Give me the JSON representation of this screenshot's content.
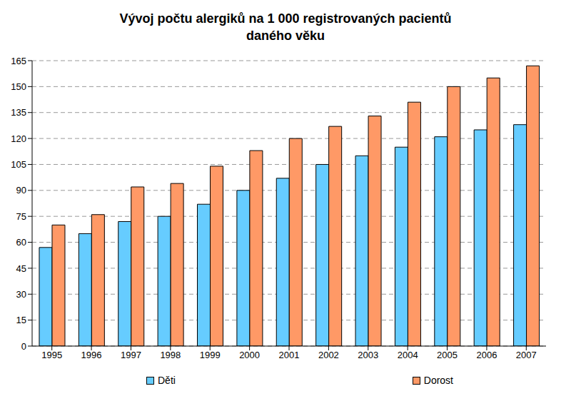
{
  "chart_data": {
    "type": "bar",
    "title": "Vývoj počtu alergiků na 1 000 registrovaných pacientů daného věku",
    "categories": [
      "1995",
      "1996",
      "1997",
      "1998",
      "1999",
      "2000",
      "2001",
      "2002",
      "2003",
      "2004",
      "2005",
      "2006",
      "2007"
    ],
    "series": [
      {
        "name": "Děti",
        "color": "#66ccff",
        "values": [
          57,
          65,
          72,
          75,
          82,
          90,
          97,
          105,
          110,
          115,
          121,
          125,
          128
        ]
      },
      {
        "name": "Dorost",
        "color": "#ff9966",
        "values": [
          70,
          76,
          92,
          94,
          104,
          113,
          120,
          127,
          133,
          141,
          150,
          155,
          162
        ]
      }
    ],
    "ylim": [
      0,
      165
    ],
    "yticks": [
      0,
      15,
      30,
      45,
      60,
      75,
      90,
      105,
      120,
      135,
      150,
      165
    ],
    "grid": true,
    "legend": "bottom"
  }
}
